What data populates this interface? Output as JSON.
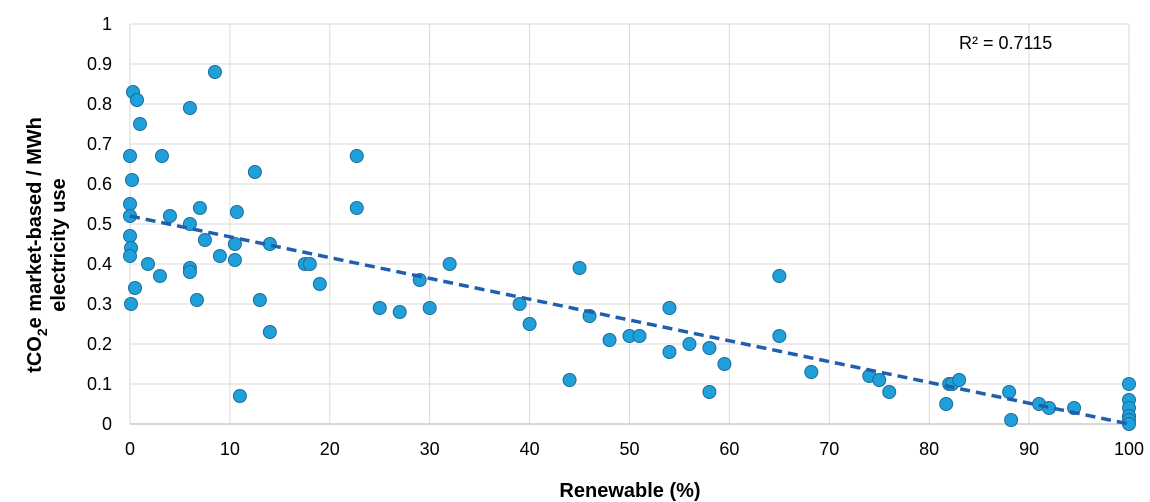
{
  "chart_data": {
    "type": "scatter",
    "xlabel": "Renewable (%)",
    "ylabel_line1_pre": "tCO",
    "ylabel_line1_sub": "2",
    "ylabel_line1_post": "e market-based / MWh",
    "ylabel_line2": "electricity use",
    "annotation": "R² = 0.7115",
    "xlim": [
      0,
      100
    ],
    "ylim": [
      0,
      1
    ],
    "xticks": [
      "0",
      "10",
      "20",
      "30",
      "40",
      "50",
      "60",
      "70",
      "80",
      "90",
      "100"
    ],
    "yticks": [
      "0",
      "0.1",
      "0.2",
      "0.3",
      "0.4",
      "0.5",
      "0.6",
      "0.7",
      "0.8",
      "0.9",
      "1"
    ],
    "grid": true,
    "legend": "none",
    "point_color": "#1fa0db",
    "point_edge_color": "#1c6d99",
    "trendline": {
      "type": "linear",
      "dashed": true,
      "color": "#1f5fae",
      "x": [
        0,
        100
      ],
      "y": [
        0.52,
        0.0
      ]
    },
    "points": [
      [
        0.3,
        0.83
      ],
      [
        0.7,
        0.81
      ],
      [
        1.0,
        0.75
      ],
      [
        0.0,
        0.67
      ],
      [
        0.2,
        0.61
      ],
      [
        0.0,
        0.55
      ],
      [
        0.0,
        0.52
      ],
      [
        0.0,
        0.47
      ],
      [
        0.1,
        0.44
      ],
      [
        0.0,
        0.42
      ],
      [
        0.5,
        0.34
      ],
      [
        0.1,
        0.3
      ],
      [
        1.8,
        0.4
      ],
      [
        3.0,
        0.37
      ],
      [
        3.2,
        0.67
      ],
      [
        4.0,
        0.52
      ],
      [
        6.0,
        0.79
      ],
      [
        6.0,
        0.5
      ],
      [
        6.0,
        0.39
      ],
      [
        6.0,
        0.38
      ],
      [
        6.7,
        0.31
      ],
      [
        7.0,
        0.54
      ],
      [
        7.5,
        0.46
      ],
      [
        8.5,
        0.88
      ],
      [
        9.0,
        0.42
      ],
      [
        10.5,
        0.45
      ],
      [
        10.7,
        0.53
      ],
      [
        10.5,
        0.41
      ],
      [
        11.0,
        0.07
      ],
      [
        12.5,
        0.63
      ],
      [
        13.0,
        0.31
      ],
      [
        14.0,
        0.45
      ],
      [
        14.0,
        0.23
      ],
      [
        17.5,
        0.4
      ],
      [
        18.0,
        0.4
      ],
      [
        19.0,
        0.35
      ],
      [
        22.7,
        0.67
      ],
      [
        22.7,
        0.54
      ],
      [
        25.0,
        0.29
      ],
      [
        27.0,
        0.28
      ],
      [
        29.0,
        0.36
      ],
      [
        30.0,
        0.29
      ],
      [
        32.0,
        0.4
      ],
      [
        39.0,
        0.3
      ],
      [
        40.0,
        0.25
      ],
      [
        44.0,
        0.11
      ],
      [
        45.0,
        0.39
      ],
      [
        46.0,
        0.27
      ],
      [
        48.0,
        0.21
      ],
      [
        50.0,
        0.22
      ],
      [
        51.0,
        0.22
      ],
      [
        54.0,
        0.29
      ],
      [
        54.0,
        0.18
      ],
      [
        56.0,
        0.2
      ],
      [
        58.0,
        0.19
      ],
      [
        58.0,
        0.08
      ],
      [
        59.5,
        0.15
      ],
      [
        65.0,
        0.37
      ],
      [
        65.0,
        0.22
      ],
      [
        68.2,
        0.13
      ],
      [
        74.0,
        0.12
      ],
      [
        75.0,
        0.11
      ],
      [
        76.0,
        0.08
      ],
      [
        81.7,
        0.05
      ],
      [
        82.0,
        0.1
      ],
      [
        82.3,
        0.1
      ],
      [
        83.0,
        0.11
      ],
      [
        88.0,
        0.08
      ],
      [
        88.2,
        0.01
      ],
      [
        91.0,
        0.05
      ],
      [
        92.0,
        0.04
      ],
      [
        94.5,
        0.04
      ],
      [
        100.0,
        0.1
      ],
      [
        100.0,
        0.06
      ],
      [
        100.0,
        0.04
      ],
      [
        100.0,
        0.02
      ],
      [
        100.0,
        0.01
      ],
      [
        100.0,
        0.0
      ]
    ]
  }
}
